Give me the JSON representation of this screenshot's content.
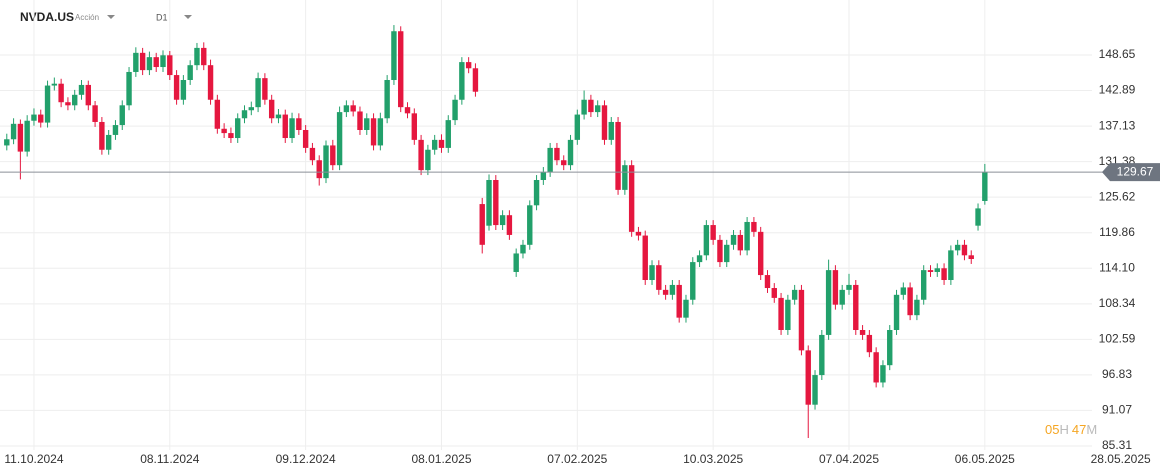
{
  "chart_data": {
    "type": "candlestick",
    "symbol": "NVDA.US",
    "instrument_kind": "Acción",
    "timeframe": "D1",
    "countdown": {
      "hours": "05",
      "hours_unit": "H",
      "minutes": "47",
      "minutes_unit": "M"
    },
    "up_color": "#22a06b",
    "down_color": "#e5173f",
    "grid": true,
    "ylim": [
      84.66,
      157.56
    ],
    "yticks": [
      85.31,
      91.07,
      96.83,
      102.59,
      108.34,
      {
        "value": 114.1,
        "label": "114.10"
      },
      119.86,
      125.62,
      131.38,
      137.13,
      142.89,
      148.65
    ],
    "xlim": [
      -1,
      172
    ],
    "xticks": [
      {
        "value": 4,
        "label": "11.10.2024"
      },
      {
        "value": 24,
        "label": "08.11.2024"
      },
      {
        "value": 44,
        "label": "09.12.2024"
      },
      {
        "value": 64,
        "label": "08.01.2025"
      },
      {
        "value": 84,
        "label": "07.02.2025"
      },
      {
        "value": 104,
        "label": "10.03.2025"
      },
      {
        "value": 124,
        "label": "07.04.2025"
      },
      {
        "value": 144,
        "label": "06.05.2025"
      },
      {
        "value": 164,
        "label": "28.05.2025"
      }
    ],
    "open": [
      134,
      135,
      137.5,
      133,
      138,
      139,
      137.7,
      143.7,
      144,
      141,
      140.5,
      142.2,
      143.8,
      140.5,
      137.8,
      133.3,
      135.7,
      137.3,
      140.5,
      145.9,
      149,
      146.2,
      148.3,
      146.7,
      148.6,
      145.4,
      141.4,
      144.6,
      147,
      149.8,
      147,
      141.4,
      136.7,
      136,
      135.2,
      138.4,
      139.7,
      140.2,
      144.9,
      141.4,
      138.4,
      139,
      135.2,
      138.4,
      136.5,
      133.6,
      131.6,
      128.7,
      134,
      130.8,
      139.4,
      140.5,
      139.5,
      136.5,
      138.4,
      134,
      138.4,
      144.6,
      152.5,
      140.2,
      139.2,
      134.9,
      130,
      133.3,
      134.9,
      133.6,
      138.1,
      141.4,
      147.5,
      146.5,
      124.5,
      121,
      128.4,
      121.1,
      122.7,
      113.5,
      116.5,
      117.9,
      124.3,
      128.4,
      129.7,
      133.6,
      131.6,
      130.8,
      134.9,
      139,
      141.4,
      139.4,
      140.5,
      134.9,
      137.8,
      126.8,
      130.8,
      120,
      119.4,
      112.2,
      114.6,
      110.6,
      109.8,
      111.4,
      106.1,
      109,
      115.1,
      116.2,
      121.1,
      118.7,
      115.1,
      117.9,
      119.5,
      117,
      121.6,
      120,
      113,
      110.9,
      109.3,
      104.1,
      109,
      110.6,
      100.8,
      92,
      96.8,
      103.3,
      113.8,
      108.2,
      110.6,
      111.4,
      104.1,
      103.3,
      100.5,
      95.6,
      98.4,
      104.1,
      109.8,
      111,
      106.5,
      109,
      113.8,
      113.5,
      114.1,
      112.2,
      117,
      117.9,
      116.2,
      121,
      125
    ],
    "high": [
      135.9,
      138.4,
      138.2,
      138.9,
      140,
      139.8,
      144.5,
      145,
      144.8,
      141.8,
      143,
      144.6,
      144.5,
      141.2,
      138.6,
      136.5,
      138.1,
      141.3,
      146.7,
      149.9,
      149.8,
      149.2,
      149,
      149.4,
      149.3,
      146.2,
      145.4,
      147.8,
      150.6,
      150.7,
      147.9,
      142.2,
      137.6,
      136.9,
      139.2,
      140.5,
      141.1,
      145.8,
      145.7,
      142.2,
      139.9,
      139.8,
      139.3,
      139.2,
      137.3,
      134.4,
      132.4,
      134.8,
      134.9,
      140.3,
      141.3,
      141.3,
      140.3,
      139.2,
      139.2,
      139.3,
      145.4,
      153.5,
      153.3,
      141,
      140,
      135.7,
      134.1,
      135.7,
      135.8,
      138.9,
      142.2,
      148.3,
      148.3,
      147.3,
      125.5,
      129.3,
      129.2,
      123.5,
      123.5,
      117.3,
      118.7,
      125.1,
      129.2,
      130.5,
      134.4,
      134.4,
      132.4,
      135.7,
      139.8,
      142.9,
      142.2,
      141.3,
      141.3,
      138.6,
      138.6,
      131.6,
      131.6,
      120.8,
      120.2,
      115.4,
      115.4,
      111.4,
      112.2,
      112.2,
      109.8,
      115.9,
      117,
      121.9,
      121.9,
      119.5,
      118.7,
      120.3,
      120.3,
      122.4,
      122.4,
      120.8,
      113.8,
      111.7,
      110.1,
      109.8,
      111.4,
      111.4,
      101.6,
      97.6,
      104.1,
      115.5,
      114.6,
      111.4,
      113.2,
      112.2,
      104.9,
      104.1,
      101.3,
      99.2,
      104.9,
      110.6,
      111.8,
      111.8,
      109.8,
      114.6,
      114.6,
      114.9,
      114.9,
      117.8,
      118.7,
      118.7,
      117,
      124.6,
      131
    ],
    "low": [
      133.2,
      134.2,
      128.5,
      132.2,
      137.2,
      136.9,
      136.9,
      142.9,
      140.2,
      139.7,
      139.7,
      141.4,
      139.7,
      137,
      132.5,
      132.5,
      134.9,
      136.5,
      139.7,
      145.1,
      145.4,
      145.4,
      145.9,
      145.9,
      144.6,
      140.6,
      140.6,
      143.8,
      146.2,
      146.2,
      140.6,
      135.9,
      135.2,
      134.4,
      134.4,
      137.6,
      138.9,
      139.4,
      140.6,
      137.6,
      137.6,
      134.4,
      134.4,
      135.7,
      132.8,
      130.8,
      127.5,
      127.9,
      130,
      130,
      138.6,
      138.7,
      135.7,
      135.7,
      133.2,
      133.2,
      137.6,
      143.8,
      139.4,
      138.4,
      134.1,
      129.2,
      129.2,
      132.5,
      132.8,
      132.8,
      137.3,
      140.6,
      145.7,
      141.9,
      116.5,
      120.2,
      120.3,
      120.3,
      118.7,
      112.7,
      115.7,
      117.1,
      123.5,
      127.6,
      128.9,
      130.8,
      130,
      130,
      134.1,
      138.2,
      138.6,
      138.6,
      134.1,
      134.1,
      126,
      126,
      119.2,
      118.6,
      111.4,
      111.4,
      109.8,
      109,
      109,
      105.3,
      105.3,
      108.2,
      114.3,
      115.4,
      117.9,
      114.3,
      114.3,
      117.1,
      116.2,
      116.2,
      119.2,
      112.2,
      110.1,
      108.5,
      103.3,
      103.3,
      108.2,
      100,
      86.6,
      91.2,
      96,
      102.5,
      107.4,
      107.4,
      109.8,
      103.3,
      102.5,
      99.7,
      94.8,
      94.8,
      97.6,
      103.3,
      109,
      105.7,
      105.7,
      108.2,
      112.7,
      112.7,
      111.4,
      111.4,
      116.2,
      115.4,
      114.8,
      120.2,
      124.4
    ],
    "close": [
      135,
      137.5,
      133,
      138,
      139,
      137.7,
      143.7,
      144,
      141,
      140.5,
      142.2,
      143.8,
      140.5,
      137.8,
      133.3,
      135.7,
      137.3,
      140.5,
      145.9,
      149,
      146.2,
      148.3,
      146.7,
      148.6,
      145.4,
      141.4,
      144.6,
      147,
      149.8,
      147,
      141.4,
      136.7,
      136,
      135.2,
      138.4,
      139.7,
      140.2,
      144.9,
      141.4,
      138.4,
      139,
      135.2,
      138.4,
      136.5,
      133.6,
      131.6,
      128.7,
      134,
      130.8,
      139.4,
      140.5,
      139.5,
      136.5,
      138.4,
      134,
      138.4,
      144.6,
      152.5,
      140.2,
      139.2,
      134.9,
      130,
      133.3,
      134.9,
      133.6,
      138.1,
      141.4,
      147.5,
      146.5,
      142.7,
      117.9,
      128.4,
      121.1,
      122.7,
      119.5,
      116.5,
      117.9,
      124.3,
      128.4,
      129.7,
      133.6,
      131.6,
      130.8,
      134.9,
      139,
      141.4,
      139.4,
      140.5,
      134.9,
      137.8,
      126.8,
      130.8,
      120,
      119.4,
      112.2,
      114.6,
      110.6,
      109.8,
      111.4,
      106.1,
      109,
      115.1,
      116.2,
      121.1,
      118.7,
      115.1,
      117.9,
      119.5,
      117,
      121.6,
      120,
      113,
      110.9,
      109.3,
      104.1,
      109,
      110.6,
      100.8,
      92,
      96.8,
      103.3,
      113.8,
      108.2,
      110.6,
      111.4,
      104.1,
      103.3,
      100.5,
      95.6,
      98.4,
      104.1,
      109.8,
      111,
      106.5,
      109,
      113.8,
      113.5,
      114.1,
      112.2,
      117,
      117.9,
      116.2,
      115.6,
      123.8,
      129.67
    ]
  }
}
